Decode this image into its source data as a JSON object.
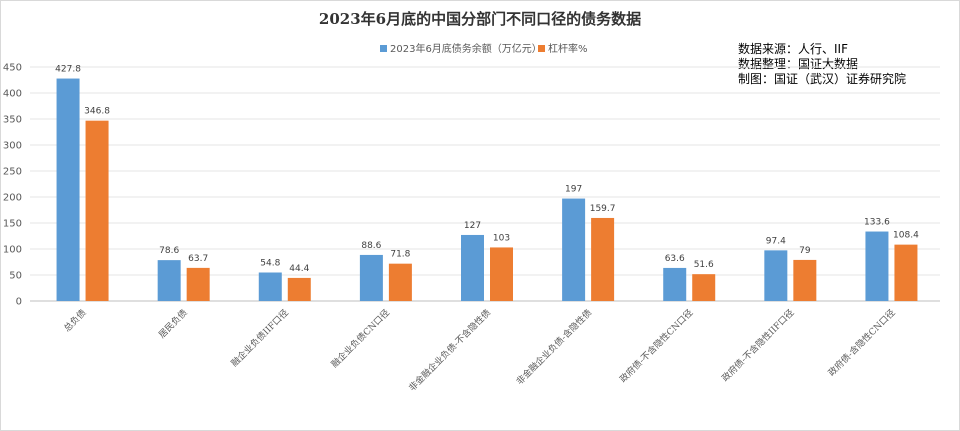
{
  "chart_data": {
    "type": "bar",
    "title": "2023年6月底的中国分部门不同口径的债务数据",
    "categories": [
      "总负债",
      "居民负债",
      "融企业负债IIF口径",
      "融企业负债CN口径",
      "非金融企业负债-不含隐性债",
      "非金融企业负债-含隐性债",
      "政府债-不含隐性CN口径",
      "政府债-不含隐性IIF口径",
      "政府债-含隐性CN口径"
    ],
    "series": [
      {
        "name": "2023年6月底债务余额（万亿元）",
        "color": "#5b9bd5",
        "values": [
          427.8,
          78.6,
          54.8,
          88.6,
          127,
          197,
          63.6,
          97.4,
          133.6
        ]
      },
      {
        "name": "杠杆率%",
        "color": "#ed7d31",
        "values": [
          346.8,
          63.7,
          44.4,
          71.8,
          103,
          159.7,
          51.6,
          79,
          108.4
        ]
      }
    ],
    "ylim": [
      0,
      450
    ],
    "yticks": [
      "0",
      "50",
      "100",
      "150",
      "200",
      "250",
      "300",
      "350",
      "400",
      "450"
    ],
    "grid": true,
    "legend_position": "top-center",
    "annotations": [
      "数据来源：人行、IIF",
      "数据整理：国证大数据",
      "制图：国证（武汉）证券研究院"
    ]
  }
}
